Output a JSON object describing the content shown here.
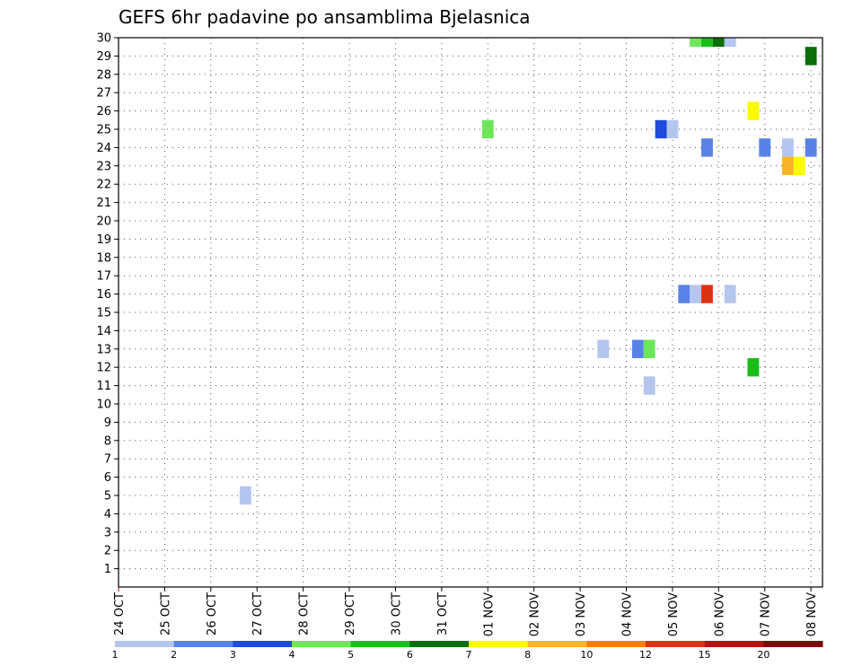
{
  "chart_data": {
    "type": "heatmap",
    "title": "GEFS 6hr padavine po ansamblima Bjelasnica",
    "xlabel": "",
    "ylabel": "",
    "x_ticks": [
      "24 OCT",
      "25 OCT",
      "26 OCT",
      "27 OCT",
      "28 OCT",
      "29 OCT",
      "30 OCT",
      "31 OCT",
      "01 NOV",
      "02 NOV",
      "03 NOV",
      "04 NOV",
      "05 NOV",
      "06 NOV",
      "07 NOV",
      "08 NOV"
    ],
    "xlim": [
      0,
      15.25
    ],
    "y_ticks": [
      1,
      2,
      3,
      4,
      5,
      6,
      7,
      8,
      9,
      10,
      11,
      12,
      13,
      14,
      15,
      16,
      17,
      18,
      19,
      20,
      21,
      22,
      23,
      24,
      25,
      26,
      27,
      28,
      29,
      30
    ],
    "ylim": [
      0,
      30
    ],
    "grid": true,
    "colorbar": {
      "labels": [
        "1",
        "2",
        "3",
        "4",
        "5",
        "6",
        "7",
        "8",
        "10",
        "12",
        "15",
        "20"
      ],
      "colors": [
        "#b4c6ee",
        "#5a82e6",
        "#1e4bdc",
        "#6ee65a",
        "#18be18",
        "#0a6e0a",
        "#fafa00",
        "#fab428",
        "#fa7d0a",
        "#dc3214",
        "#b41414",
        "#780a0a"
      ]
    },
    "cells": [
      {
        "t": 2.75,
        "member": 5,
        "value": 1
      },
      {
        "t": 8.0,
        "member": 25,
        "value": 4
      },
      {
        "t": 10.5,
        "member": 13,
        "value": 1
      },
      {
        "t": 11.25,
        "member": 13,
        "value": 2
      },
      {
        "t": 11.5,
        "member": 13,
        "value": 4
      },
      {
        "t": 11.5,
        "member": 11,
        "value": 1
      },
      {
        "t": 11.75,
        "member": 25,
        "value": 3
      },
      {
        "t": 12.0,
        "member": 25,
        "value": 1
      },
      {
        "t": 12.25,
        "member": 16,
        "value": 2
      },
      {
        "t": 12.5,
        "member": 16,
        "value": 1
      },
      {
        "t": 12.5,
        "member": 30,
        "value": 4
      },
      {
        "t": 12.75,
        "member": 30,
        "value": 5
      },
      {
        "t": 12.75,
        "member": 24,
        "value": 2
      },
      {
        "t": 12.75,
        "member": 16,
        "value": 12
      },
      {
        "t": 13.0,
        "member": 30,
        "value": 6
      },
      {
        "t": 13.25,
        "member": 30,
        "value": 1
      },
      {
        "t": 13.25,
        "member": 16,
        "value": 1
      },
      {
        "t": 13.75,
        "member": 26,
        "value": 7
      },
      {
        "t": 13.75,
        "member": 12,
        "value": 5
      },
      {
        "t": 14.0,
        "member": 24,
        "value": 2
      },
      {
        "t": 14.5,
        "member": 24,
        "value": 1
      },
      {
        "t": 14.5,
        "member": 23,
        "value": 8
      },
      {
        "t": 14.75,
        "member": 23,
        "value": 7
      },
      {
        "t": 15.0,
        "member": 24,
        "value": 2
      },
      {
        "t": 15.0,
        "member": 29,
        "value": 6
      }
    ]
  }
}
